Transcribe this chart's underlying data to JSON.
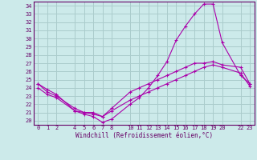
{
  "xlabel": "Windchill (Refroidissement éolien,°C)",
  "background_color": "#cceaea",
  "grid_color": "#aacccc",
  "line_color": "#aa00aa",
  "x_ticks": [
    0,
    1,
    2,
    4,
    5,
    6,
    7,
    8,
    10,
    11,
    12,
    13,
    14,
    15,
    16,
    17,
    18,
    19,
    20,
    22,
    23
  ],
  "y_ticks": [
    20,
    21,
    22,
    23,
    24,
    25,
    26,
    27,
    28,
    29,
    30,
    31,
    32,
    33,
    34
  ],
  "xlim": [
    -0.5,
    23.5
  ],
  "ylim": [
    19.5,
    34.5
  ],
  "line1_x": [
    0,
    1,
    2,
    4,
    5,
    6,
    7,
    8,
    10,
    11,
    12,
    13,
    14,
    15,
    16,
    17,
    18,
    19,
    20,
    22,
    23
  ],
  "line1_y": [
    24.5,
    23.8,
    23.2,
    21.2,
    20.8,
    20.5,
    19.8,
    20.2,
    22.0,
    22.8,
    24.0,
    25.5,
    27.2,
    29.8,
    31.5,
    33.0,
    34.2,
    34.2,
    29.5,
    25.5,
    24.5
  ],
  "line2_x": [
    0,
    1,
    2,
    4,
    5,
    6,
    7,
    8,
    10,
    11,
    12,
    13,
    14,
    15,
    16,
    17,
    18,
    19,
    20,
    22,
    23
  ],
  "line2_y": [
    24.5,
    23.5,
    23.0,
    21.5,
    21.0,
    21.0,
    20.5,
    21.5,
    23.5,
    24.0,
    24.5,
    25.0,
    25.5,
    26.0,
    26.5,
    27.0,
    27.0,
    27.2,
    26.8,
    26.5,
    24.5
  ],
  "line3_x": [
    0,
    1,
    2,
    4,
    5,
    6,
    7,
    8,
    10,
    11,
    12,
    13,
    14,
    15,
    16,
    17,
    18,
    19,
    20,
    22,
    23
  ],
  "line3_y": [
    24.0,
    23.2,
    22.8,
    21.2,
    21.0,
    20.8,
    20.5,
    21.2,
    22.5,
    23.0,
    23.5,
    24.0,
    24.5,
    25.0,
    25.5,
    26.0,
    26.5,
    26.8,
    26.5,
    25.8,
    24.2
  ]
}
